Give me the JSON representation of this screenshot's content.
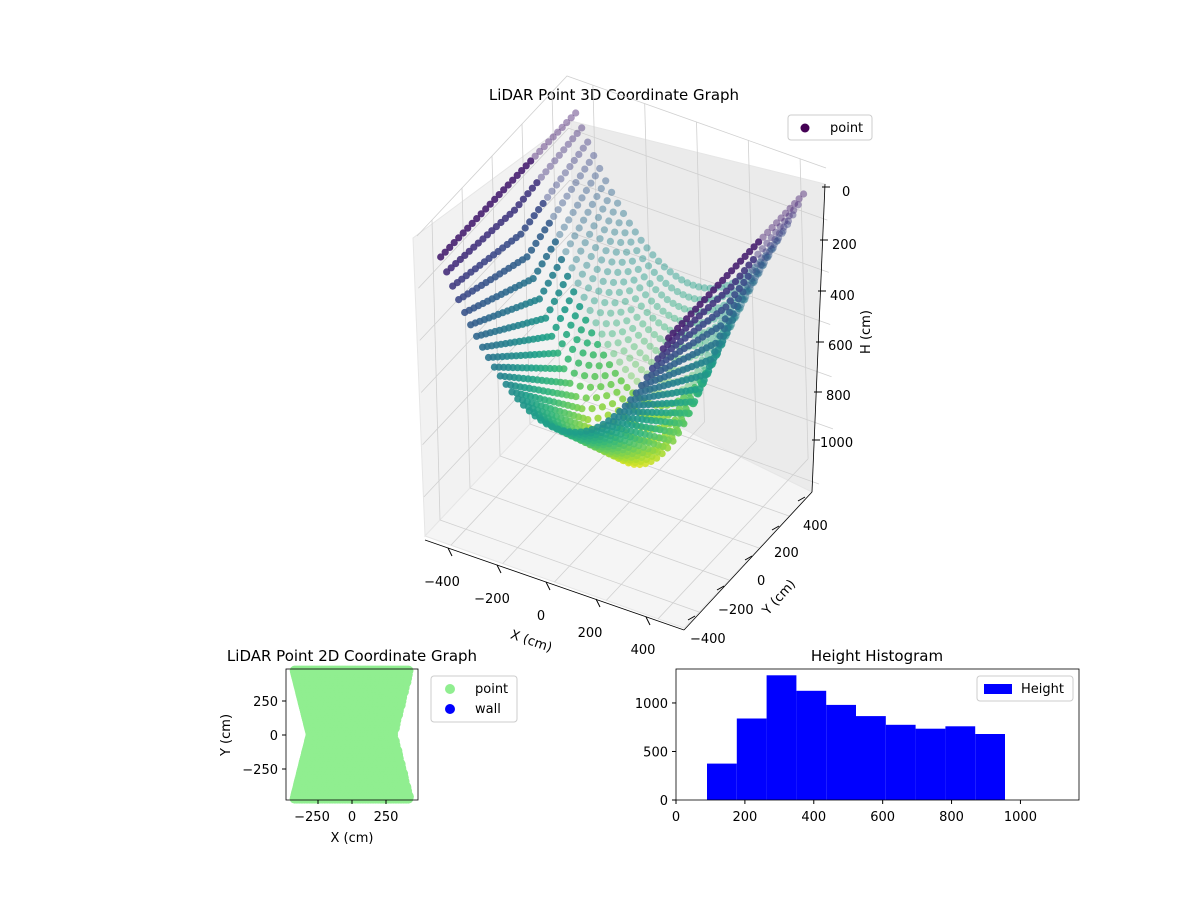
{
  "chart_data": [
    {
      "type": "scatter",
      "projection": "3d",
      "title": "LiDAR Point 3D Coordinate Graph",
      "xlabel": "X (cm)",
      "ylabel": "Y (cm)",
      "zlabel": "H (cm)",
      "xlim": [
        -500,
        500
      ],
      "ylim": [
        -500,
        500
      ],
      "zlim": [
        1150,
        0
      ],
      "z_inverted": true,
      "xticks": [
        "−400",
        "−200",
        "0",
        "200",
        "400"
      ],
      "yticks": [
        "−400",
        "−200",
        "0",
        "200",
        "400"
      ],
      "zticks": [
        "0",
        "200",
        "400",
        "600",
        "800",
        "1000"
      ],
      "colormap": "viridis",
      "legend": {
        "position": "top-right",
        "entries": [
          {
            "label": "point",
            "color": "#440154"
          }
        ]
      },
      "grid": true,
      "series": [
        {
          "name": "point",
          "description_shape": "bowl of parabolic arcs",
          "h_range": [
            90,
            1000
          ]
        }
      ]
    },
    {
      "type": "scatter",
      "title": "LiDAR Point 2D Coordinate Graph",
      "xlabel": "X (cm)",
      "ylabel": "Y (cm)",
      "xlim": [
        -480,
        480
      ],
      "ylim": [
        -480,
        480
      ],
      "xticks": [
        "−250",
        "0",
        "250"
      ],
      "yticks": [
        "250",
        "0",
        "−250"
      ],
      "legend": {
        "position": "right",
        "entries": [
          {
            "label": "point",
            "color": "#90ee90"
          },
          {
            "label": "wall",
            "color": "#0000ff"
          }
        ]
      },
      "series": [
        {
          "name": "point",
          "color": "#90ee90"
        },
        {
          "name": "wall",
          "color": "#0000ff",
          "values": []
        }
      ]
    },
    {
      "type": "bar",
      "subtype": "histogram",
      "title": "Height Histogram",
      "xlabel": "",
      "ylabel": "",
      "xlim": [
        0,
        1170
      ],
      "ylim": [
        0,
        1350
      ],
      "xticks": [
        "0",
        "200",
        "400",
        "600",
        "800",
        "1000"
      ],
      "yticks": [
        "0",
        "500",
        "1000"
      ],
      "bar_color": "#0000ff",
      "legend": {
        "position": "top-right",
        "entries": [
          {
            "label": "Height",
            "color": "#0000ff"
          }
        ]
      },
      "bin_edges": [
        90,
        176.5,
        263,
        349.5,
        436,
        522.5,
        609,
        695.5,
        782,
        868.5,
        955
      ],
      "values": [
        375,
        840,
        1285,
        1125,
        980,
        865,
        775,
        735,
        760,
        680
      ]
    }
  ]
}
